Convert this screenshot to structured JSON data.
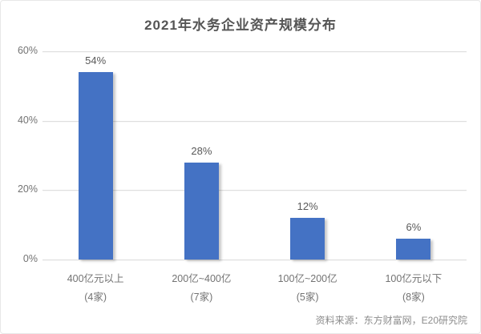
{
  "title": "2021年水务企业资产规模分布",
  "source": "资料来源：东方财富网，E20研究院",
  "colors": {
    "bar": "#4472c4",
    "gridline": "#dedede",
    "title_text": "#555555",
    "axis_text": "#737373",
    "value_label_text": "#595959",
    "source_text": "#8c8c8c",
    "border": "#e8e8e8",
    "background": "#ffffff"
  },
  "chart_data": {
    "type": "bar",
    "title": "2021年水务企业资产规模分布",
    "categories": [
      "400亿元以上",
      "200亿~400亿",
      "100亿~200亿",
      "100亿元以下"
    ],
    "category_sublabels": [
      "(4家)",
      "(7家)",
      "(5家)",
      "(8家)"
    ],
    "values": [
      54,
      28,
      12,
      6
    ],
    "value_labels": [
      "54%",
      "28%",
      "12%",
      "6%"
    ],
    "xlabel": "",
    "ylabel": "",
    "ylim": [
      0,
      60
    ],
    "yticks": [
      0,
      20,
      40,
      60
    ],
    "ytick_labels": [
      "0%",
      "20%",
      "40%",
      "60%"
    ],
    "grid": true,
    "legend": false,
    "bar_color": "#4472c4",
    "source_note": "资料来源：东方财富网，E20研究院"
  }
}
